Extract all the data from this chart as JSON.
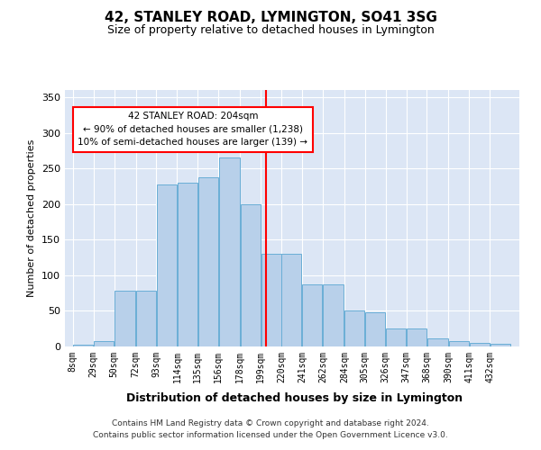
{
  "title": "42, STANLEY ROAD, LYMINGTON, SO41 3SG",
  "subtitle": "Size of property relative to detached houses in Lymington",
  "xlabel": "Distribution of detached houses by size in Lymington",
  "ylabel": "Number of detached properties",
  "bar_values": [
    3,
    7,
    78,
    78,
    228,
    230,
    237,
    265,
    200,
    130,
    130,
    87,
    87,
    50,
    48,
    25,
    25,
    11,
    8,
    5,
    4
  ],
  "bin_edges": [
    8,
    29,
    50,
    72,
    93,
    114,
    135,
    156,
    178,
    199,
    220,
    241,
    262,
    284,
    305,
    326,
    347,
    368,
    390,
    411,
    432,
    453
  ],
  "tick_labels": [
    "8sqm",
    "29sqm",
    "50sqm",
    "72sqm",
    "93sqm",
    "114sqm",
    "135sqm",
    "156sqm",
    "178sqm",
    "199sqm",
    "220sqm",
    "241sqm",
    "262sqm",
    "284sqm",
    "305sqm",
    "326sqm",
    "347sqm",
    "368sqm",
    "390sqm",
    "411sqm",
    "432sqm"
  ],
  "bar_color": "#b8d0ea",
  "bar_edge_color": "#6aaed6",
  "red_line_x": 204,
  "annotation_title": "42 STANLEY ROAD: 204sqm",
  "annotation_line1": "← 90% of detached houses are smaller (1,238)",
  "annotation_line2": "10% of semi-detached houses are larger (139) →",
  "ylim": [
    0,
    360
  ],
  "yticks": [
    0,
    50,
    100,
    150,
    200,
    250,
    300,
    350
  ],
  "background_color": "#dce6f5",
  "footer_line1": "Contains HM Land Registry data © Crown copyright and database right 2024.",
  "footer_line2": "Contains public sector information licensed under the Open Government Licence v3.0."
}
